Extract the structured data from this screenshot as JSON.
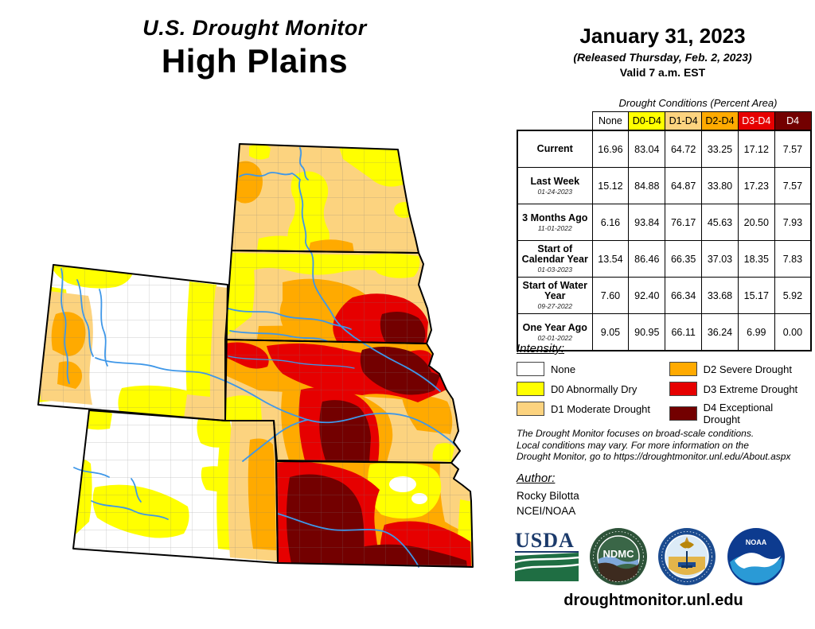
{
  "title": {
    "line1": "U.S. Drought Monitor",
    "line2": "High Plains"
  },
  "date_block": {
    "date": "January 31, 2023",
    "released": "(Released Thursday, Feb. 2, 2023)",
    "valid": "Valid 7 a.m. EST"
  },
  "table": {
    "caption": "Drought Conditions (Percent Area)",
    "columns": [
      {
        "label": "None",
        "bg": "#FFFFFF",
        "fg": "#000000"
      },
      {
        "label": "D0-D4",
        "bg": "#FFFF00",
        "fg": "#000000"
      },
      {
        "label": "D1-D4",
        "bg": "#FCD37F",
        "fg": "#000000"
      },
      {
        "label": "D2-D4",
        "bg": "#FFAA00",
        "fg": "#000000"
      },
      {
        "label": "D3-D4",
        "bg": "#E60000",
        "fg": "#FFFFFF"
      },
      {
        "label": "D4",
        "bg": "#730000",
        "fg": "#FFFFFF"
      }
    ],
    "rows": [
      {
        "label": "Current",
        "date": "",
        "values": [
          "16.96",
          "83.04",
          "64.72",
          "33.25",
          "17.12",
          "7.57"
        ]
      },
      {
        "label": "Last Week",
        "date": "01-24-2023",
        "values": [
          "15.12",
          "84.88",
          "64.87",
          "33.80",
          "17.23",
          "7.57"
        ]
      },
      {
        "label": "3 Months Ago",
        "date": "11-01-2022",
        "values": [
          "6.16",
          "93.84",
          "76.17",
          "45.63",
          "20.50",
          "7.93"
        ]
      },
      {
        "label": "Start of Calendar Year",
        "date": "01-03-2023",
        "values": [
          "13.54",
          "86.46",
          "66.35",
          "37.03",
          "18.35",
          "7.83"
        ]
      },
      {
        "label": "Start of Water Year",
        "date": "09-27-2022",
        "values": [
          "7.60",
          "92.40",
          "66.34",
          "33.68",
          "15.17",
          "5.92"
        ]
      },
      {
        "label": "One Year Ago",
        "date": "02-01-2022",
        "values": [
          "9.05",
          "90.95",
          "66.11",
          "36.24",
          "6.99",
          "0.00"
        ]
      }
    ]
  },
  "legend": {
    "heading": "Intensity:",
    "items": [
      {
        "label": "None",
        "color": "#FFFFFF"
      },
      {
        "label": "D0 Abnormally Dry",
        "color": "#FFFF00"
      },
      {
        "label": "D1 Moderate Drought",
        "color": "#FCD37F"
      },
      {
        "label": "D2 Severe Drought",
        "color": "#FFAA00"
      },
      {
        "label": "D3 Extreme Drought",
        "color": "#E60000"
      },
      {
        "label": "D4 Exceptional Drought",
        "color": "#730000"
      }
    ]
  },
  "map": {
    "region": "High Plains",
    "states": [
      "ND",
      "SD",
      "WY",
      "NE",
      "CO",
      "KS"
    ],
    "palette": {
      "none": "#FFFFFF",
      "d0": "#FFFF00",
      "d1": "#FCD37F",
      "d2": "#FFAA00",
      "d3": "#E60000",
      "d4": "#730000",
      "river": "#3E97E8"
    }
  },
  "disclaimer": "The Drought Monitor focuses on broad-scale conditions.\nLocal conditions may vary. For more information on the\nDrought Monitor, go to https://droughtmonitor.unl.edu/About.aspx",
  "author": {
    "heading": "Author:",
    "name": "Rocky Bilotta",
    "org": "NCEI/NOAA"
  },
  "logos": {
    "usda": "USDA",
    "ndmc": "NDMC",
    "doc": "DOC",
    "noaa": "NOAA"
  },
  "footer": {
    "url": "droughtmonitor.unl.edu"
  }
}
